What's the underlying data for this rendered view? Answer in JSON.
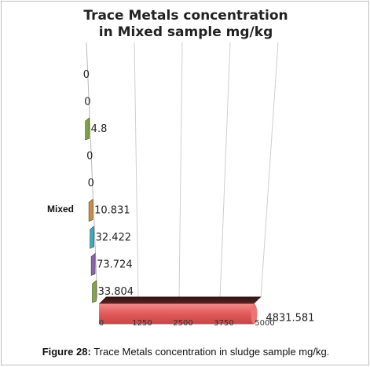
{
  "chart_data": {
    "type": "bar",
    "orientation": "horizontal",
    "title_lines": [
      "Trace Metals concentration",
      "in Mixed sample mg/kg"
    ],
    "category_label": "Mixed",
    "bars": [
      {
        "label": "0",
        "value": 0,
        "color": "#7f9b3a"
      },
      {
        "label": "0",
        "value": 0,
        "color": "#7f9b3a"
      },
      {
        "label": "4.8",
        "value": 4.8,
        "color": "#7da23f"
      },
      {
        "label": "0",
        "value": 0,
        "color": "#7f9b3a"
      },
      {
        "label": "0",
        "value": 0,
        "color": "#7f9b3a"
      },
      {
        "label": "10.831",
        "value": 10.831,
        "color": "#d08a43"
      },
      {
        "label": "32.422",
        "value": 32.422,
        "color": "#3aa9c4"
      },
      {
        "label": "73.724",
        "value": 73.724,
        "color": "#8a62b0"
      },
      {
        "label": "33.804",
        "value": 33.804,
        "color": "#86a63e"
      },
      {
        "label": "4831.581",
        "value": 4831.581,
        "color": "#e15a5a"
      }
    ],
    "x_ticks": [
      0,
      1250,
      2500,
      3750,
      5000
    ],
    "x_tick_labels": [
      "0",
      "1250",
      "2500",
      "3750",
      "5000"
    ],
    "xlim": [
      0,
      5000
    ],
    "grid": true
  },
  "caption": {
    "label": "Figure 28:",
    "text": " Trace Metals concentration in sludge sample mg/kg."
  }
}
